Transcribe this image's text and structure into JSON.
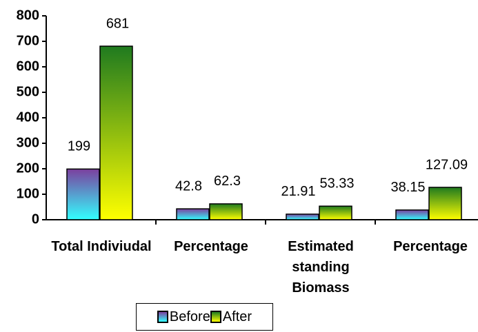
{
  "chart_data": {
    "type": "bar",
    "categories": [
      "Total Indiviudal",
      "Percentage",
      "Estimated standing Biomass",
      "Percentage"
    ],
    "series": [
      {
        "name": "Before",
        "color": "#7b3f9e",
        "values": [
          199,
          42.8,
          21.91,
          38.15
        ]
      },
      {
        "name": "After",
        "color": "#1f7a1f",
        "values": [
          681,
          62.3,
          53.33,
          127.09
        ]
      }
    ],
    "ylim": [
      0,
      800
    ],
    "yticks": [
      0,
      100,
      200,
      300,
      400,
      500,
      600,
      700,
      800
    ],
    "grid": false,
    "legend": "bottom"
  }
}
